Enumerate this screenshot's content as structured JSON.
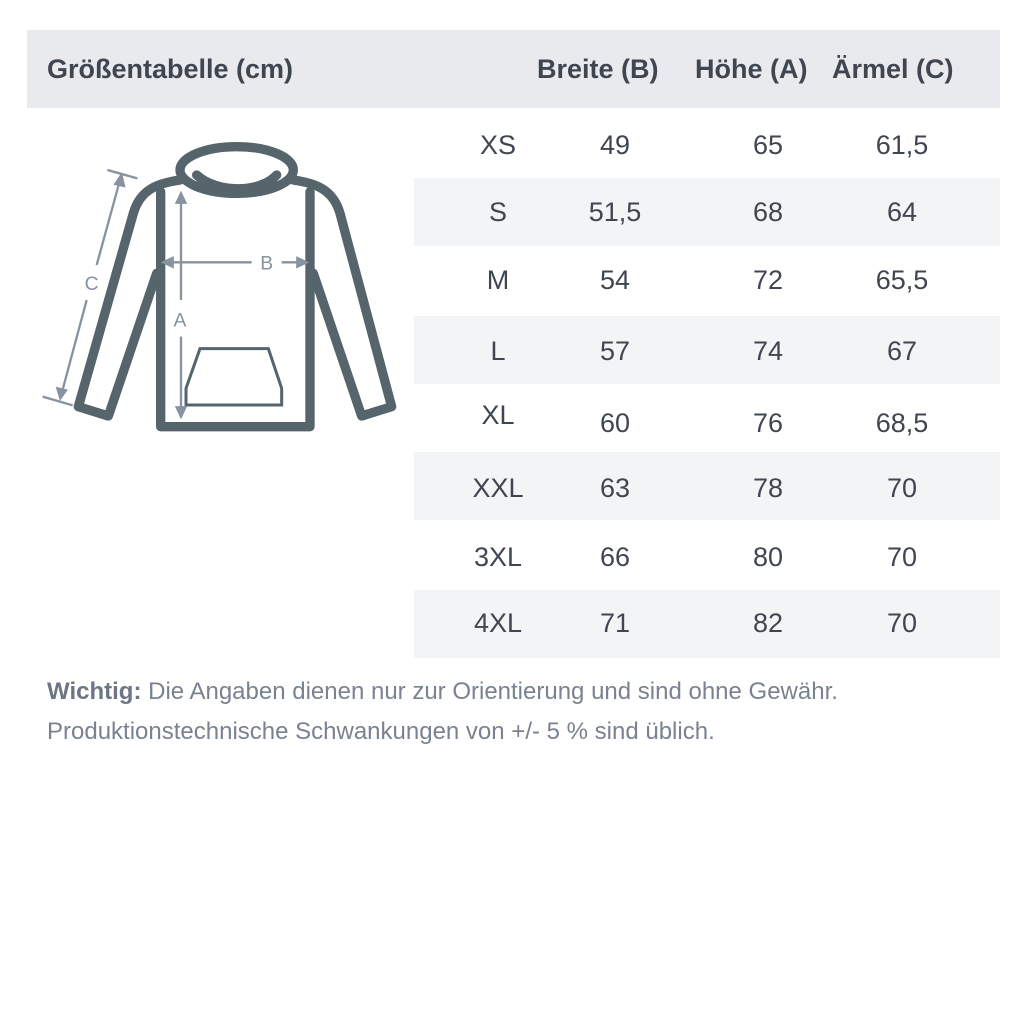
{
  "header": {
    "title": "Größentabelle (cm)",
    "col_b": "Breite (B)",
    "col_a": "Höhe (A)",
    "col_c": "Ärmel (C)"
  },
  "diagram": {
    "label_a": "A",
    "label_b": "B",
    "label_c": "C",
    "outline_color": "#56646c",
    "arrow_color": "#8793a0"
  },
  "rows": [
    {
      "size": "XS",
      "b": "49",
      "a": "65",
      "c": "61,5"
    },
    {
      "size": "S",
      "b": "51,5",
      "a": "68",
      "c": "64"
    },
    {
      "size": "M",
      "b": "54",
      "a": "72",
      "c": "65,5"
    },
    {
      "size": "L",
      "b": "57",
      "a": "74",
      "c": "67"
    },
    {
      "size": "XL",
      "b": "60",
      "a": "76",
      "c": "68,5"
    },
    {
      "size": "XXL",
      "b": "63",
      "a": "78",
      "c": "70"
    },
    {
      "size": "3XL",
      "b": "66",
      "a": "80",
      "c": "70"
    },
    {
      "size": "4XL",
      "b": "71",
      "a": "82",
      "c": "70"
    }
  ],
  "note": {
    "bold": "Wichtig:",
    "line1": "Die Angaben dienen nur zur Orientierung und sind ohne Gewähr.",
    "line2": "Produktionstechnische Schwankungen von +/- 5 % sind üblich."
  }
}
